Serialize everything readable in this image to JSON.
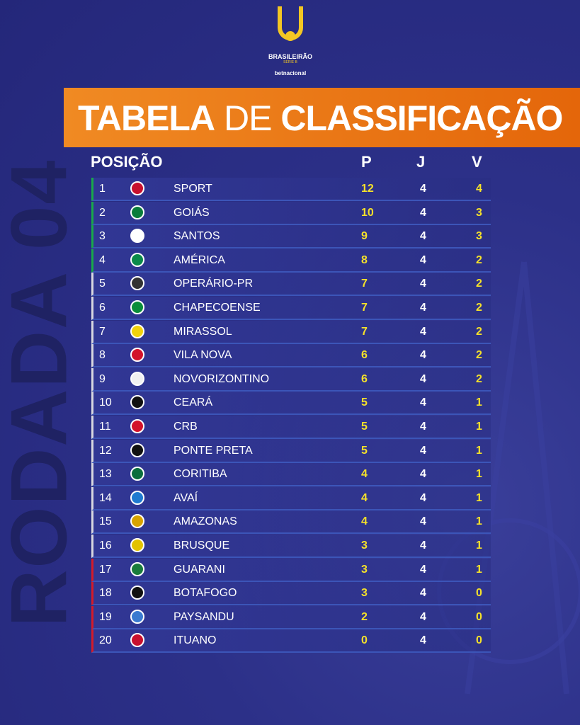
{
  "logo": {
    "name": "BRASILEIRÃO",
    "series": "SÉRIE B",
    "sponsor": "betnacional"
  },
  "side_label": "RODADA 04",
  "title": {
    "part1": "TABELA",
    "part2": "DE",
    "part3": "CLASSIFICAÇÃO"
  },
  "table": {
    "headers": [
      "POSIÇÃO",
      "P",
      "J",
      "V"
    ],
    "rows": [
      [
        1,
        "SPORT",
        12,
        4,
        4
      ],
      [
        2,
        "GOIÁS",
        10,
        4,
        3
      ],
      [
        3,
        "SANTOS",
        9,
        4,
        3
      ],
      [
        4,
        "AMÉRICA",
        8,
        4,
        2
      ],
      [
        5,
        "OPERÁRIO-PR",
        7,
        4,
        2
      ],
      [
        6,
        "CHAPECOENSE",
        7,
        4,
        2
      ],
      [
        7,
        "MIRASSOL",
        7,
        4,
        2
      ],
      [
        8,
        "VILA NOVA",
        6,
        4,
        2
      ],
      [
        9,
        "NOVORIZONTINO",
        6,
        4,
        2
      ],
      [
        10,
        "CEARÁ",
        5,
        4,
        1
      ],
      [
        11,
        "CRB",
        5,
        4,
        1
      ],
      [
        12,
        "PONTE PRETA",
        5,
        4,
        1
      ],
      [
        13,
        "CORITIBA",
        4,
        4,
        1
      ],
      [
        14,
        "AVAÍ",
        4,
        4,
        1
      ],
      [
        15,
        "AMAZONAS",
        4,
        4,
        1
      ],
      [
        16,
        "BRUSQUE",
        3,
        4,
        1
      ],
      [
        17,
        "GUARANI",
        3,
        4,
        1
      ],
      [
        18,
        "BOTAFOGO",
        3,
        4,
        0
      ],
      [
        19,
        "PAYSANDU",
        2,
        4,
        0
      ],
      [
        20,
        "ITUANO",
        0,
        4,
        0
      ]
    ]
  }
}
